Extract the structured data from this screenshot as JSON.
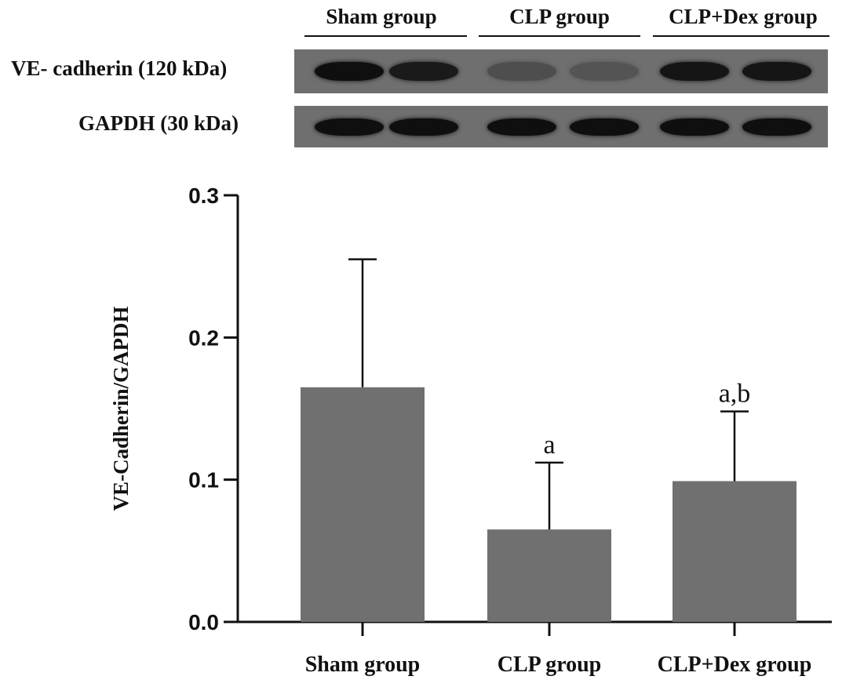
{
  "blot": {
    "group_labels": [
      "Sham group",
      "CLP group",
      "CLP+Dex group"
    ],
    "rows": [
      {
        "label": "VE- cadherin (120 kDa)",
        "band_intensity": [
          0.95,
          0.85,
          0.35,
          0.3,
          0.9,
          0.9
        ]
      },
      {
        "label": "GAPDH (30 kDa)",
        "band_intensity": [
          0.95,
          0.95,
          0.95,
          0.95,
          0.95,
          0.95
        ]
      }
    ]
  },
  "chart_data": {
    "type": "bar",
    "categories": [
      "Sham group",
      "CLP group",
      "CLP+Dex group"
    ],
    "values": [
      0.165,
      0.065,
      0.099
    ],
    "error_upper": [
      0.255,
      0.112,
      0.148
    ],
    "annotations": [
      "",
      "a",
      "a,b"
    ],
    "ylabel": "VE-Cadherin/GAPDH",
    "xlabel": "",
    "ylim": [
      0,
      0.3
    ],
    "yticks": [
      0.0,
      0.1,
      0.2,
      0.3
    ],
    "ytick_labels": [
      "0.0",
      "0.1",
      "0.2",
      "0.3"
    ],
    "bar_color": "#707070",
    "grid": false
  }
}
